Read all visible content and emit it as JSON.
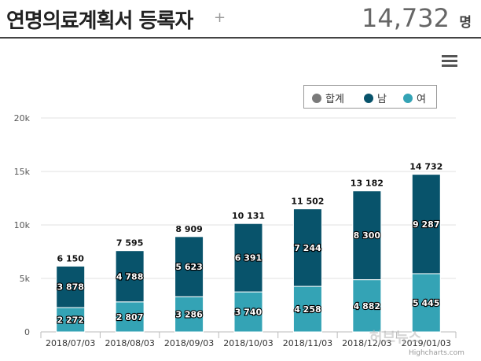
{
  "header": {
    "title": "연명의료계획서 등록자",
    "plus": "+",
    "total": "14,732",
    "unit": "명"
  },
  "legend": [
    {
      "label": "합계",
      "color": "#7a7a7a"
    },
    {
      "label": "남",
      "color": "#08536b"
    },
    {
      "label": "여",
      "color": "#34a3b5"
    }
  ],
  "credits": "Highcharts.com",
  "watermark": "허브뉴스",
  "chart_data": {
    "type": "bar",
    "stacked": true,
    "categories": [
      "2018/07/03",
      "2018/08/03",
      "2018/09/03",
      "2018/10/03",
      "2018/11/03",
      "2018/12/03",
      "2019/01/03"
    ],
    "series": [
      {
        "name": "남",
        "color": "#08536b",
        "values": [
          3878,
          4788,
          5623,
          6391,
          7244,
          8300,
          9287
        ],
        "labels": [
          "3 878",
          "4 788",
          "5 623",
          "6 391",
          "7 244",
          "8 300",
          "9 287"
        ]
      },
      {
        "name": "여",
        "color": "#34a3b5",
        "values": [
          2272,
          2807,
          3286,
          3740,
          4258,
          4882,
          5445
        ],
        "labels": [
          "2 272",
          "2 807",
          "3 286",
          "3 740",
          "4 258",
          "4 882",
          "5 445"
        ]
      }
    ],
    "totals": [
      6150,
      7595,
      8909,
      10131,
      11502,
      13182,
      14732
    ],
    "total_labels": [
      "6 150",
      "7 595",
      "8 909",
      "10 131",
      "11 502",
      "13 182",
      "14 732"
    ],
    "y_ticks": [
      0,
      5000,
      10000,
      15000,
      20000
    ],
    "y_tick_labels": [
      "0",
      "5k",
      "10k",
      "15k",
      "20k"
    ],
    "ylim": [
      0,
      20000
    ],
    "grid": true,
    "legend_position": "top-right"
  }
}
